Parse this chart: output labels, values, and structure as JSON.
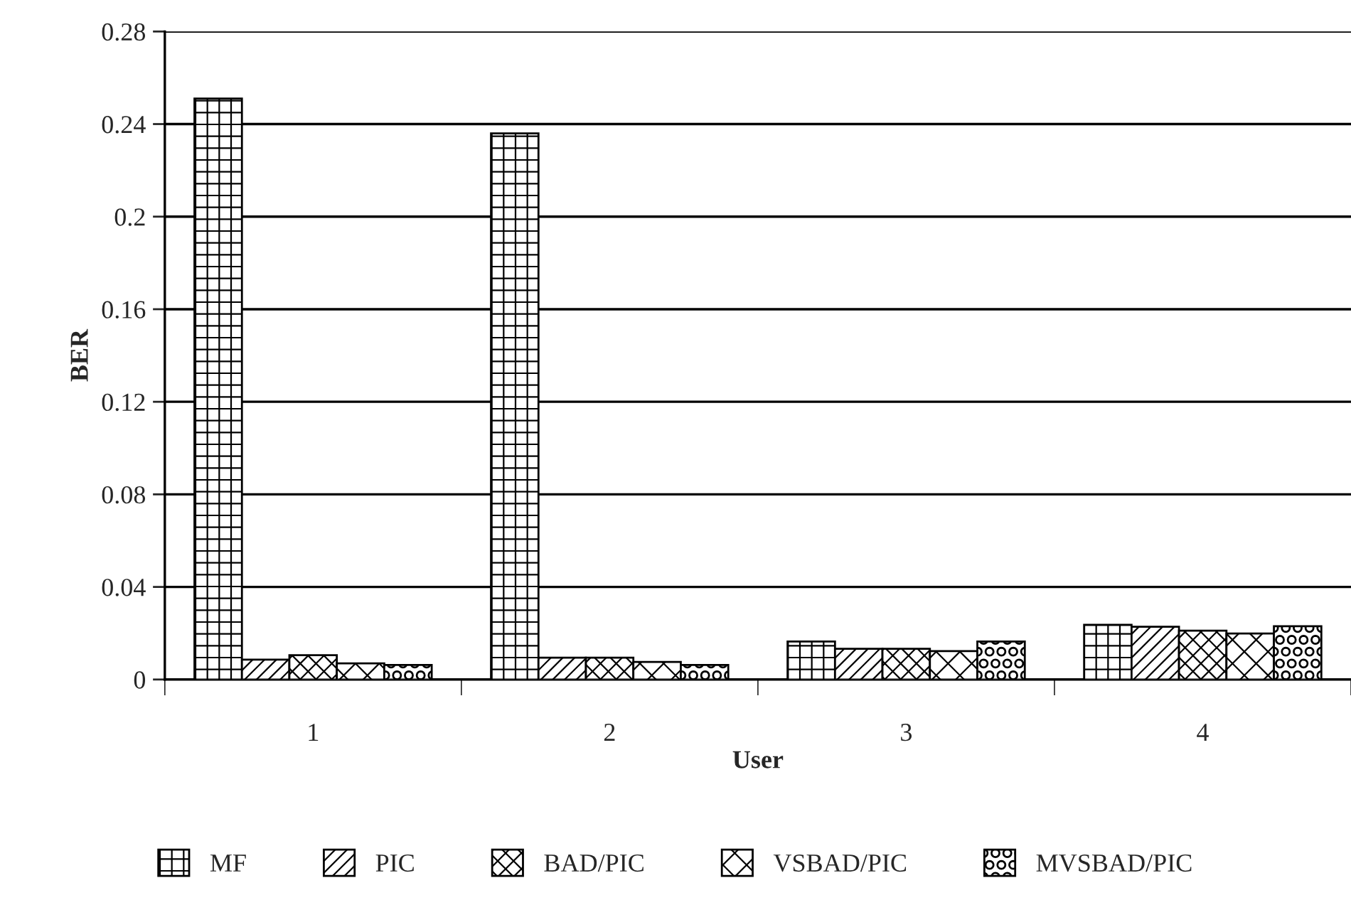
{
  "chart_data": {
    "type": "bar",
    "xlabel": "User",
    "ylabel": "BER",
    "categories": [
      "1",
      "2",
      "3",
      "4"
    ],
    "series": [
      {
        "name": "MF",
        "color": "#000000",
        "values": [
          0.251,
          0.236,
          0.0164,
          0.0236
        ]
      },
      {
        "name": "PIC",
        "color": "#000000",
        "values": [
          0.0086,
          0.0094,
          0.0133,
          0.0228
        ]
      },
      {
        "name": "BAD/PIC",
        "color": "#000000",
        "values": [
          0.0105,
          0.0094,
          0.0133,
          0.0211
        ]
      },
      {
        "name": "VSBAD/PIC",
        "color": "#000000",
        "values": [
          0.007,
          0.0076,
          0.0123,
          0.0199
        ]
      },
      {
        "name": "MVSBAD/PIC",
        "color": "#000000",
        "values": [
          0.0063,
          0.0063,
          0.0164,
          0.023
        ]
      }
    ],
    "ylim": [
      0,
      0.28
    ],
    "yticks": [
      0,
      0.04,
      0.08,
      0.12,
      0.16,
      0.2,
      0.24,
      0.28
    ],
    "grid": "y",
    "legend": "bottom"
  }
}
